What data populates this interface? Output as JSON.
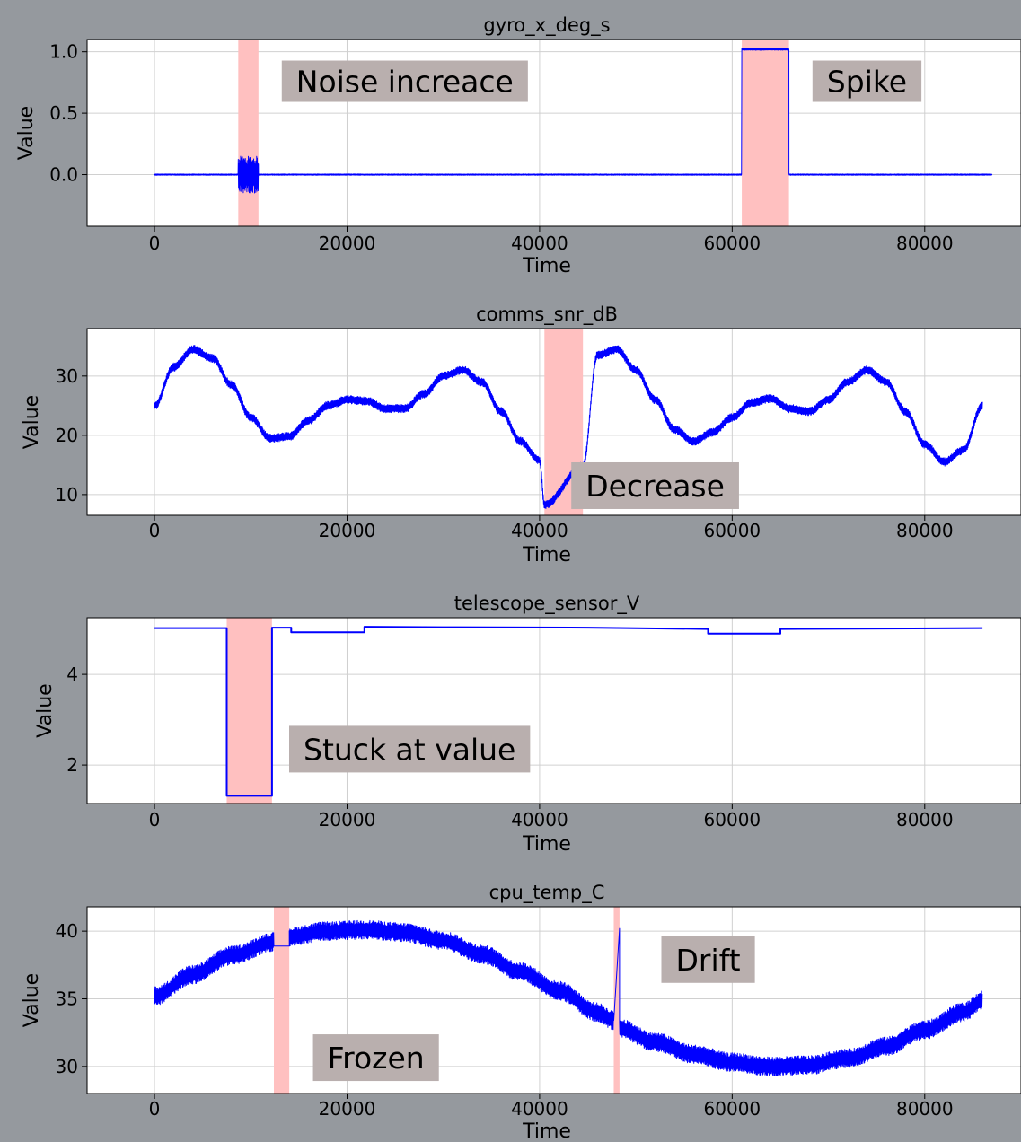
{
  "colors": {
    "line": "#0000ff",
    "highlight": "#ffc0c0",
    "annotation_box": "#b9afae",
    "panel_background": "#ffffff",
    "grid": "#d0d0d0",
    "page_background": "#8f9398"
  },
  "chart_data": [
    {
      "type": "line",
      "title": "gyro_x_deg_s",
      "xlabel": "Time",
      "ylabel": "Value",
      "xlim": [
        -7000,
        90000
      ],
      "ylim": [
        -0.42,
        1.1
      ],
      "xticks": [
        0,
        20000,
        40000,
        60000,
        80000
      ],
      "xtick_labels": [
        "0",
        "20000",
        "40000",
        "60000",
        "80000"
      ],
      "yticks": [
        0.0,
        0.5,
        1.0
      ],
      "ytick_labels": [
        "0.0",
        "0.5",
        "1.0"
      ],
      "grid": true,
      "series": [
        {
          "segments": [
            {
              "x": [
                0,
                8700
              ],
              "y": [
                0.0,
                0.0
              ],
              "noise": 0.01
            },
            {
              "x": [
                8700,
                10800
              ],
              "y": [
                0.0,
                0.0
              ],
              "noise": 0.3
            },
            {
              "x": [
                10800,
                61000
              ],
              "y": [
                0.0,
                0.0
              ],
              "noise": 0.01
            },
            {
              "x": [
                61000,
                65900
              ],
              "y": [
                1.02,
                1.02
              ],
              "noise": 0.015
            },
            {
              "x": [
                65900,
                87000
              ],
              "y": [
                0.0,
                0.0
              ],
              "noise": 0.01
            }
          ]
        }
      ],
      "anomalies": [
        {
          "x_start": 8700,
          "x_end": 10800,
          "label": "Noise increace",
          "label_x": 26000,
          "label_y": 0.76
        },
        {
          "x_start": 61000,
          "x_end": 65900,
          "label": "Spike",
          "label_x": 74000,
          "label_y": 0.76
        }
      ]
    },
    {
      "type": "line",
      "title": "comms_snr_dB",
      "xlabel": "Time",
      "ylabel": "Value",
      "xlim": [
        -7000,
        90000
      ],
      "ylim": [
        6.5,
        38
      ],
      "xticks": [
        0,
        20000,
        40000,
        60000,
        80000
      ],
      "xtick_labels": [
        "0",
        "20000",
        "40000",
        "60000",
        "80000"
      ],
      "yticks": [
        10,
        20,
        30
      ],
      "ytick_labels": [
        "10",
        "20",
        "30"
      ],
      "grid": true,
      "series": [
        {
          "x": [
            0,
            2000,
            4000,
            6000,
            8000,
            10000,
            12000,
            14000,
            16000,
            18000,
            20000,
            22000,
            24000,
            26000,
            28000,
            30000,
            32000,
            34000,
            36000,
            38000,
            40000,
            40500,
            44500,
            46000,
            48000,
            50000,
            52000,
            54000,
            56000,
            58000,
            60000,
            62000,
            64000,
            66000,
            68000,
            70000,
            72000,
            74000,
            76000,
            78000,
            80000,
            82000,
            84000,
            86000
          ],
          "y": [
            25,
            31.5,
            34.5,
            33,
            28.5,
            23,
            19.5,
            19.8,
            22.5,
            25,
            26,
            25.8,
            24.5,
            24.5,
            27,
            30,
            31,
            29,
            24,
            19,
            15.8,
            8.3,
            14.8,
            33.5,
            34.5,
            31,
            26,
            21,
            19,
            20.5,
            23,
            25.5,
            26.2,
            24.5,
            24,
            26,
            29,
            31,
            29,
            24,
            18.5,
            15.5,
            17.5,
            25
          ],
          "noise": 1.4
        }
      ],
      "anomalies": [
        {
          "x_start": 40500,
          "x_end": 44500,
          "label": "Decrease",
          "label_x": 52000,
          "label_y": 11.5
        }
      ]
    },
    {
      "type": "line",
      "title": "telescope_sensor_V",
      "xlabel": "Time",
      "ylabel": "Value",
      "xlim": [
        -7000,
        90000
      ],
      "ylim": [
        1.15,
        5.25
      ],
      "xticks": [
        0,
        20000,
        40000,
        60000,
        80000
      ],
      "xtick_labels": [
        "0",
        "20000",
        "40000",
        "60000",
        "80000"
      ],
      "yticks": [
        2,
        4
      ],
      "ytick_labels": [
        "2",
        "4"
      ],
      "grid": true,
      "series": [
        {
          "x": [
            0,
            7500,
            7500,
            12200,
            12200,
            14200,
            14200,
            21800,
            21800,
            30000,
            45000,
            57500,
            57500,
            65000,
            65000,
            86000
          ],
          "y": [
            5.02,
            5.02,
            1.32,
            1.32,
            5.03,
            5.03,
            4.93,
            4.93,
            5.05,
            5.04,
            5.03,
            5.0,
            4.9,
            4.9,
            5.0,
            5.02
          ],
          "noise": 0
        }
      ],
      "anomalies": [
        {
          "x_start": 7500,
          "x_end": 12200,
          "label": "Stuck at value",
          "label_x": 26500,
          "label_y": 2.35
        }
      ]
    },
    {
      "type": "line",
      "title": "cpu_temp_C",
      "xlabel": "Time",
      "ylabel": "Value",
      "xlim": [
        -7000,
        90000
      ],
      "ylim": [
        28,
        41.8
      ],
      "xticks": [
        0,
        20000,
        40000,
        60000,
        80000
      ],
      "xtick_labels": [
        "0",
        "20000",
        "40000",
        "60000",
        "80000"
      ],
      "yticks": [
        30,
        35,
        40
      ],
      "ytick_labels": [
        "30",
        "35",
        "40"
      ],
      "grid": true,
      "series": [
        {
          "segments": [
            {
              "x": [
                0,
                4000,
                8000,
                12400
              ],
              "y": [
                35.2,
                36.8,
                38.2,
                39.2
              ],
              "noise": 1.4
            },
            {
              "x": [
                12400,
                14000
              ],
              "y": [
                38.9,
                38.9
              ],
              "noise": 0
            },
            {
              "x": [
                14000,
                18000,
                22000,
                26000,
                30000,
                34000,
                38000,
                42000,
                46000,
                47700
              ],
              "y": [
                39.6,
                40.0,
                40.1,
                39.9,
                39.3,
                38.3,
                37.0,
                35.6,
                34.0,
                33.4
              ],
              "noise": 1.4
            },
            {
              "x": [
                47700,
                48300
              ],
              "y": [
                33.4,
                40.2
              ],
              "noise": 0
            },
            {
              "x": [
                48300,
                52000,
                56000,
                60000,
                64000,
                68000,
                72000,
                76000,
                80000,
                84000,
                86000
              ],
              "y": [
                32.8,
                31.8,
                30.9,
                30.3,
                30.0,
                30.1,
                30.6,
                31.5,
                32.7,
                34.0,
                34.9
              ],
              "noise": 1.4
            }
          ]
        }
      ],
      "anomalies": [
        {
          "x_start": 12400,
          "x_end": 14000,
          "label": "Frozen",
          "label_x": 23000,
          "label_y": 30.65
        },
        {
          "x_start": 47700,
          "x_end": 48300,
          "label": "Drift",
          "label_x": 57500,
          "label_y": 37.9
        }
      ]
    }
  ]
}
